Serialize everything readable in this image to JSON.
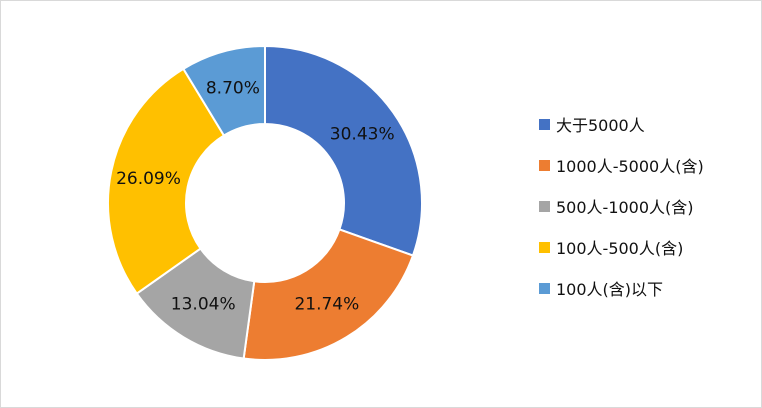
{
  "chart_data": {
    "type": "pie",
    "donut": true,
    "title": "",
    "categories": [
      "大于5000人",
      "1000人-5000人(含)",
      "500人-1000人(含)",
      "100人-500人(含)",
      "100人(含)以下"
    ],
    "values": [
      30.43,
      21.74,
      13.04,
      26.09,
      8.7
    ],
    "labels": [
      "30.43%",
      "21.74%",
      "13.04%",
      "26.09%",
      "8.70%"
    ],
    "colors": [
      "#4472c4",
      "#ed7d31",
      "#a5a5a5",
      "#ffc000",
      "#5b9bd5"
    ],
    "legend_position": "right"
  }
}
